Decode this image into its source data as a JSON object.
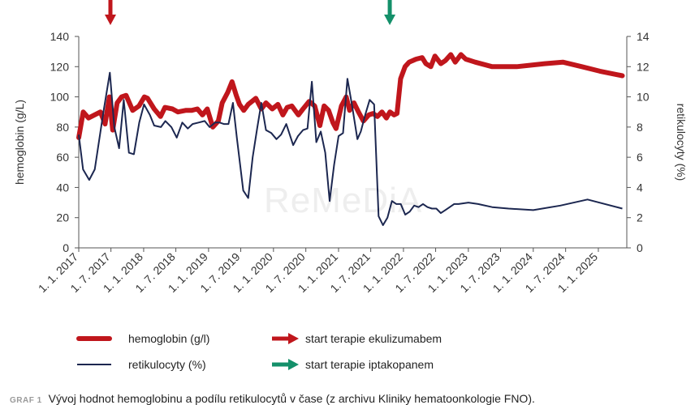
{
  "chart_data": {
    "type": "line",
    "x_tick_labels": [
      "1. 1. 2017",
      "1. 7. 2017",
      "1. 1. 2018",
      "1. 7. 2018",
      "1. 1. 2019",
      "1. 7. 2019",
      "1. 1. 2020",
      "1. 7. 2020",
      "1. 1. 2021",
      "1. 7. 2021",
      "1. 1. 2022",
      "1. 7. 2022",
      "1. 1. 2023",
      "1. 7. 2023",
      "1. 1. 2024",
      "1. 7. 2024",
      "1. 1. 2025"
    ],
    "xlim": [
      "2017-01-01",
      "2025-06-10"
    ],
    "ylabel_left": "hemoglobin (g/L)",
    "ylim_left": [
      0,
      140
    ],
    "yticks_left": [
      "0",
      "20",
      "40",
      "60",
      "80",
      "100",
      "120",
      "140"
    ],
    "ylabel_right": "retikulocyty (%)",
    "ylim_right": [
      0,
      14
    ],
    "yticks_right": [
      "0",
      "2",
      "4",
      "6",
      "8",
      "10",
      "12",
      "14"
    ],
    "colors": {
      "hemoglobin": "#c0161c",
      "retikulocyty": "#1c2750",
      "arrow_red": "#c0161c",
      "arrow_green": "#14906a",
      "axis": "#555555"
    },
    "series": [
      {
        "name": "hemoglobin (g/l)",
        "axis": "left",
        "x": [
          "2017-01-01",
          "2017-01-26",
          "2017-02-25",
          "2017-05-03",
          "2017-05-29",
          "2017-06-22",
          "2017-07-11",
          "2017-08-05",
          "2017-08-30",
          "2017-09-24",
          "2017-10-31",
          "2017-12-06",
          "2018-01-05",
          "2018-01-23",
          "2018-03-01",
          "2018-04-06",
          "2018-05-01",
          "2018-06-12",
          "2018-07-13",
          "2018-08-25",
          "2018-09-27",
          "2018-10-30",
          "2018-11-28",
          "2018-12-25",
          "2019-01-25",
          "2019-02-25",
          "2019-03-19",
          "2019-04-19",
          "2019-05-13",
          "2019-06-06",
          "2019-06-24",
          "2019-07-18",
          "2019-08-12",
          "2019-09-24",
          "2019-10-25",
          "2019-11-20",
          "2019-12-25",
          "2020-01-26",
          "2020-02-23",
          "2020-03-18",
          "2020-04-13",
          "2020-05-20",
          "2020-06-15",
          "2020-07-20",
          "2020-08-20",
          "2020-09-18",
          "2020-10-12",
          "2020-11-06",
          "2020-11-30",
          "2020-12-18",
          "2021-01-17",
          "2021-02-13",
          "2021-03-04",
          "2021-03-29",
          "2021-04-23",
          "2021-05-21",
          "2021-06-20",
          "2021-07-14",
          "2021-08-08",
          "2021-09-02",
          "2021-09-27",
          "2021-10-17",
          "2021-11-09",
          "2021-11-26",
          "2021-12-16",
          "2022-01-10",
          "2022-02-02",
          "2022-03-13",
          "2022-04-16",
          "2022-05-07",
          "2022-06-04",
          "2022-06-27",
          "2022-07-30",
          "2022-08-25",
          "2022-09-24",
          "2022-10-19",
          "2022-11-20",
          "2022-12-17",
          "2023-02-08",
          "2023-05-15",
          "2023-09-30",
          "2024-03-05",
          "2024-06-15",
          "2024-09-30",
          "2025-01-10",
          "2025-05-16"
        ],
        "y": [
          73,
          90,
          86,
          90,
          82,
          100,
          78,
          96,
          100,
          101,
          91,
          94,
          100,
          99,
          92,
          87,
          93,
          92,
          90,
          91,
          91,
          92,
          88,
          92,
          80,
          84,
          96,
          103,
          110,
          101,
          95,
          91,
          95,
          99,
          92,
          96,
          92,
          95,
          88,
          93,
          94,
          88,
          92,
          97,
          94,
          81,
          94,
          91,
          83,
          79,
          94,
          100,
          91,
          96,
          90,
          84,
          88,
          89,
          87,
          90,
          86,
          90,
          88,
          89,
          112,
          120,
          123,
          125,
          126,
          122,
          120,
          127,
          122,
          124,
          128,
          123,
          128,
          125,
          123,
          120,
          120,
          122,
          123,
          120,
          117,
          114
        ]
      },
      {
        "name": "retikulocyty (%)",
        "axis": "right",
        "x": [
          "2017-01-01",
          "2017-01-25",
          "2017-03-01",
          "2017-04-01",
          "2017-05-20",
          "2017-06-25",
          "2017-07-20",
          "2017-08-16",
          "2017-09-11",
          "2017-10-10",
          "2017-11-07",
          "2017-12-07",
          "2018-01-03",
          "2018-02-05",
          "2018-03-01",
          "2018-04-08",
          "2018-05-03",
          "2018-06-06",
          "2018-07-06",
          "2018-08-06",
          "2018-09-06",
          "2018-10-03",
          "2018-11-06",
          "2018-12-10",
          "2019-01-07",
          "2019-02-07",
          "2019-03-04",
          "2019-03-28",
          "2019-04-23",
          "2019-05-18",
          "2019-06-09",
          "2019-07-15",
          "2019-08-12",
          "2019-09-06",
          "2019-10-01",
          "2019-10-25",
          "2019-11-20",
          "2019-12-20",
          "2020-01-18",
          "2020-02-13",
          "2020-03-13",
          "2020-04-21",
          "2020-05-18",
          "2020-06-15",
          "2020-07-10",
          "2020-08-04",
          "2020-08-29",
          "2020-09-23",
          "2020-10-18",
          "2020-11-12",
          "2020-12-07",
          "2021-01-01",
          "2021-01-26",
          "2021-02-20",
          "2021-03-17",
          "2021-04-17",
          "2021-05-06",
          "2021-05-31",
          "2021-06-25",
          "2021-07-20",
          "2021-08-14",
          "2021-09-08",
          "2021-10-03",
          "2021-10-28",
          "2021-11-22",
          "2021-12-17",
          "2022-01-11",
          "2022-02-05",
          "2022-03-02",
          "2022-03-27",
          "2022-04-21",
          "2022-05-16",
          "2022-06-10",
          "2022-07-05",
          "2022-07-30",
          "2022-08-24",
          "2022-09-18",
          "2022-10-13",
          "2022-11-07",
          "2023-01-01",
          "2023-02-25",
          "2023-05-15",
          "2023-08-15",
          "2024-01-01",
          "2024-06-01",
          "2024-11-01",
          "2025-05-16"
        ],
        "y": [
          7.5,
          5.2,
          4.5,
          5.2,
          9.0,
          11.6,
          8.0,
          6.6,
          9.8,
          6.3,
          6.2,
          8.3,
          9.5,
          8.8,
          8.1,
          8.0,
          8.4,
          8.0,
          7.3,
          8.3,
          7.9,
          8.2,
          8.3,
          8.4,
          8.0,
          8.3,
          8.3,
          8.2,
          8.2,
          9.6,
          7.3,
          3.8,
          3.3,
          6.0,
          7.9,
          9.6,
          7.8,
          7.6,
          7.2,
          7.5,
          8.2,
          6.8,
          7.4,
          7.8,
          7.9,
          11.0,
          7.0,
          7.7,
          6.3,
          3.1,
          5.5,
          7.4,
          7.6,
          11.2,
          9.5,
          7.2,
          7.7,
          8.8,
          9.8,
          9.5,
          2.1,
          1.5,
          2.0,
          3.1,
          2.9,
          2.9,
          2.2,
          2.4,
          2.8,
          2.7,
          2.9,
          2.7,
          2.6,
          2.6,
          2.3,
          2.5,
          2.7,
          2.9,
          2.9,
          3.0,
          2.9,
          2.7,
          2.6,
          2.5,
          2.8,
          3.2,
          2.6
        ]
      }
    ],
    "annotations": [
      {
        "label": "start terapie ekulizumabem",
        "date": "2017-06-28",
        "color": "#c0161c"
      },
      {
        "label": "start terapie iptakopanem",
        "date": "2021-10-16",
        "color": "#14906a"
      }
    ],
    "legend": {
      "placement": "bottom-left"
    }
  },
  "watermark": "ReMeDiA",
  "caption": {
    "label": "GRAF 1",
    "text": "Vývoj hodnot hemoglobinu a podílu retikulocytů v čase (z archivu Kliniky hematoonkologie FNO)."
  }
}
